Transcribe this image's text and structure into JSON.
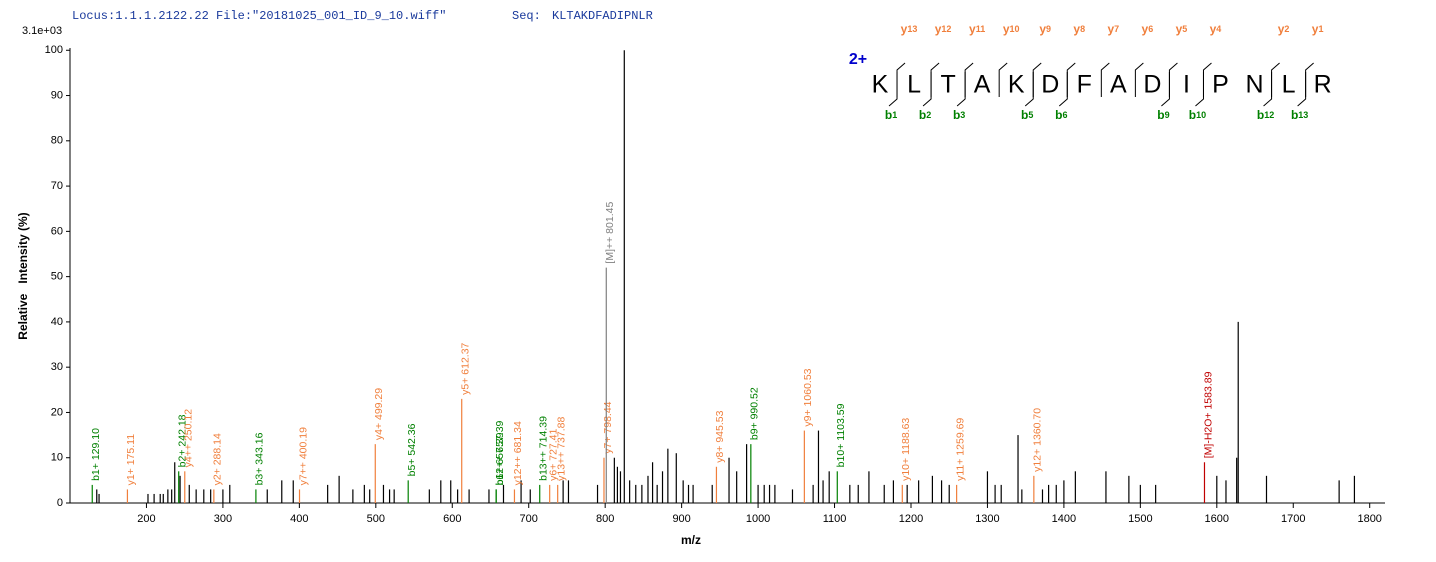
{
  "chart_data": {
    "type": "spectrum",
    "header": {
      "locus": "Locus:1.1.1.2122.22 File:\"20181025_001_ID_9_10.wiff\"",
      "seq_label": "Seq:",
      "seq": "KLTAKDFADIPNLR"
    },
    "scale_label": "3.1e+03",
    "xlabel": "m/z",
    "ylabel": "Relative   Intensity (%)",
    "xlim": [
      100,
      1820
    ],
    "ylim": [
      0,
      100.5
    ],
    "xticks": [
      200,
      300,
      400,
      500,
      600,
      700,
      800,
      900,
      1000,
      1100,
      1200,
      1300,
      1400,
      1500,
      1600,
      1700,
      1800
    ],
    "yticks": [
      0,
      10,
      20,
      30,
      40,
      50,
      60,
      70,
      80,
      90,
      100
    ],
    "peak_color": "#000000",
    "peaks": {
      "x": [
        135,
        138,
        202,
        210,
        218,
        222,
        228,
        233,
        237,
        244,
        256,
        265,
        275,
        284,
        300,
        309,
        358,
        377,
        392,
        437,
        452,
        470,
        485,
        492,
        510,
        518,
        524,
        570,
        585,
        598,
        607,
        622,
        648,
        667,
        690,
        702,
        745,
        752,
        790,
        812,
        816,
        820,
        825,
        832,
        840,
        848,
        856,
        862,
        868,
        875,
        882,
        893,
        902,
        909,
        915,
        940,
        962,
        972,
        985,
        1000,
        1008,
        1015,
        1022,
        1045,
        1072,
        1079,
        1085,
        1093,
        1120,
        1131,
        1145,
        1165,
        1177,
        1195,
        1210,
        1228,
        1240,
        1250,
        1300,
        1310,
        1318,
        1340,
        1345,
        1372,
        1380,
        1390,
        1400,
        1415,
        1455,
        1485,
        1500,
        1520,
        1600,
        1612,
        1626,
        1628,
        1665,
        1760,
        1780
      ],
      "values": [
        3,
        2,
        2,
        2,
        2,
        2,
        3,
        3,
        9,
        6,
        4,
        3,
        3,
        3,
        3,
        4,
        3,
        5,
        5,
        4,
        6,
        3,
        4,
        3,
        4,
        3,
        3,
        3,
        5,
        5,
        3,
        3,
        3,
        4,
        5,
        3,
        5,
        5,
        4,
        10,
        8,
        7,
        100,
        5,
        4,
        4,
        6,
        9,
        4,
        7,
        12,
        11,
        5,
        4,
        4,
        4,
        10,
        7,
        13,
        4,
        4,
        4,
        4,
        3,
        4,
        16,
        5,
        7,
        4,
        4,
        7,
        4,
        5,
        4,
        5,
        6,
        5,
        4,
        7,
        4,
        4,
        15,
        3,
        3,
        4,
        4,
        5,
        7,
        7,
        6,
        4,
        4,
        6,
        5,
        10,
        40,
        6,
        5,
        6
      ]
    },
    "annotated": [
      {
        "label": "b1+ 129.10",
        "x": 129.1,
        "value": 4,
        "color": "#008000"
      },
      {
        "label": "y1+ 175.11",
        "x": 175.11,
        "value": 3,
        "color": "#f07f3c"
      },
      {
        "label": "b2+ 242.18",
        "x": 242.18,
        "value": 7,
        "color": "#008000"
      },
      {
        "label": "y4++ 250.12",
        "x": 250.12,
        "value": 7,
        "color": "#f07f3c"
      },
      {
        "label": "y2+ 288.14",
        "x": 288.14,
        "value": 3,
        "color": "#f07f3c"
      },
      {
        "label": "b3+ 343.16",
        "x": 343.16,
        "value": 3,
        "color": "#008000"
      },
      {
        "label": "y7++ 400.19",
        "x": 400.19,
        "value": 3,
        "color": "#f07f3c"
      },
      {
        "label": "y4+ 499.29",
        "x": 499.29,
        "value": 13,
        "color": "#f07f3c"
      },
      {
        "label": "b5+ 542.36",
        "x": 542.36,
        "value": 5,
        "color": "#008000"
      },
      {
        "label": "y5+ 612.37",
        "x": 612.37,
        "value": 23,
        "color": "#f07f3c"
      },
      {
        "label": "b6+ 657.39",
        "x": 657.39,
        "value": 3,
        "color": "#008000"
      },
      {
        "label": "b12++ 657.39",
        "x": 657.39,
        "value": 3,
        "color": "#008000"
      },
      {
        "label": "y12++ 681.34",
        "x": 681.34,
        "value": 3,
        "color": "#f07f3c"
      },
      {
        "label": "b13++ 714.39",
        "x": 714.39,
        "value": 4,
        "color": "#008000"
      },
      {
        "label": "y6+ 727.41",
        "x": 727.41,
        "value": 4,
        "color": "#f07f3c"
      },
      {
        "label": "y13++ 737.88",
        "x": 737.88,
        "value": 4,
        "color": "#f07f3c"
      },
      {
        "label": "y7+ 798.44",
        "x": 798.44,
        "value": 10,
        "color": "#f07f3c"
      },
      {
        "label": "[M]++ 801.45",
        "x": 801.45,
        "value": 52,
        "color": "#808080"
      },
      {
        "label": "y8+ 945.53",
        "x": 945.53,
        "value": 8,
        "color": "#f07f3c"
      },
      {
        "label": "b9+ 990.52",
        "x": 990.52,
        "value": 13,
        "color": "#008000"
      },
      {
        "label": "y9+ 1060.53",
        "x": 1060.53,
        "value": 16,
        "color": "#f07f3c"
      },
      {
        "label": "b10+ 1103.59",
        "x": 1103.59,
        "value": 7,
        "color": "#008000"
      },
      {
        "label": "y10+ 1188.63",
        "x": 1188.63,
        "value": 4,
        "color": "#f07f3c"
      },
      {
        "label": "y11+ 1259.69",
        "x": 1259.69,
        "value": 4,
        "color": "#f07f3c"
      },
      {
        "label": "y12+ 1360.70",
        "x": 1360.7,
        "value": 6,
        "color": "#f07f3c"
      },
      {
        "label": "[M]-H2O+ 1583.89",
        "x": 1583.89,
        "value": 9,
        "color": "#c00000"
      }
    ],
    "sequence": {
      "charge": "2+",
      "residues": [
        "K",
        "L",
        "T",
        "A",
        "K",
        "D",
        "F",
        "A",
        "D",
        "I",
        "P",
        "N",
        "L",
        "R"
      ],
      "y_symbol": "y",
      "y_color": "#f07f3c",
      "y_ions": [
        13,
        12,
        11,
        10,
        9,
        8,
        7,
        6,
        5,
        4,
        2,
        1
      ],
      "b_symbol": "b",
      "b_color": "#008000",
      "b_ions": [
        1,
        2,
        3,
        5,
        6,
        9,
        10,
        12,
        13
      ]
    }
  }
}
